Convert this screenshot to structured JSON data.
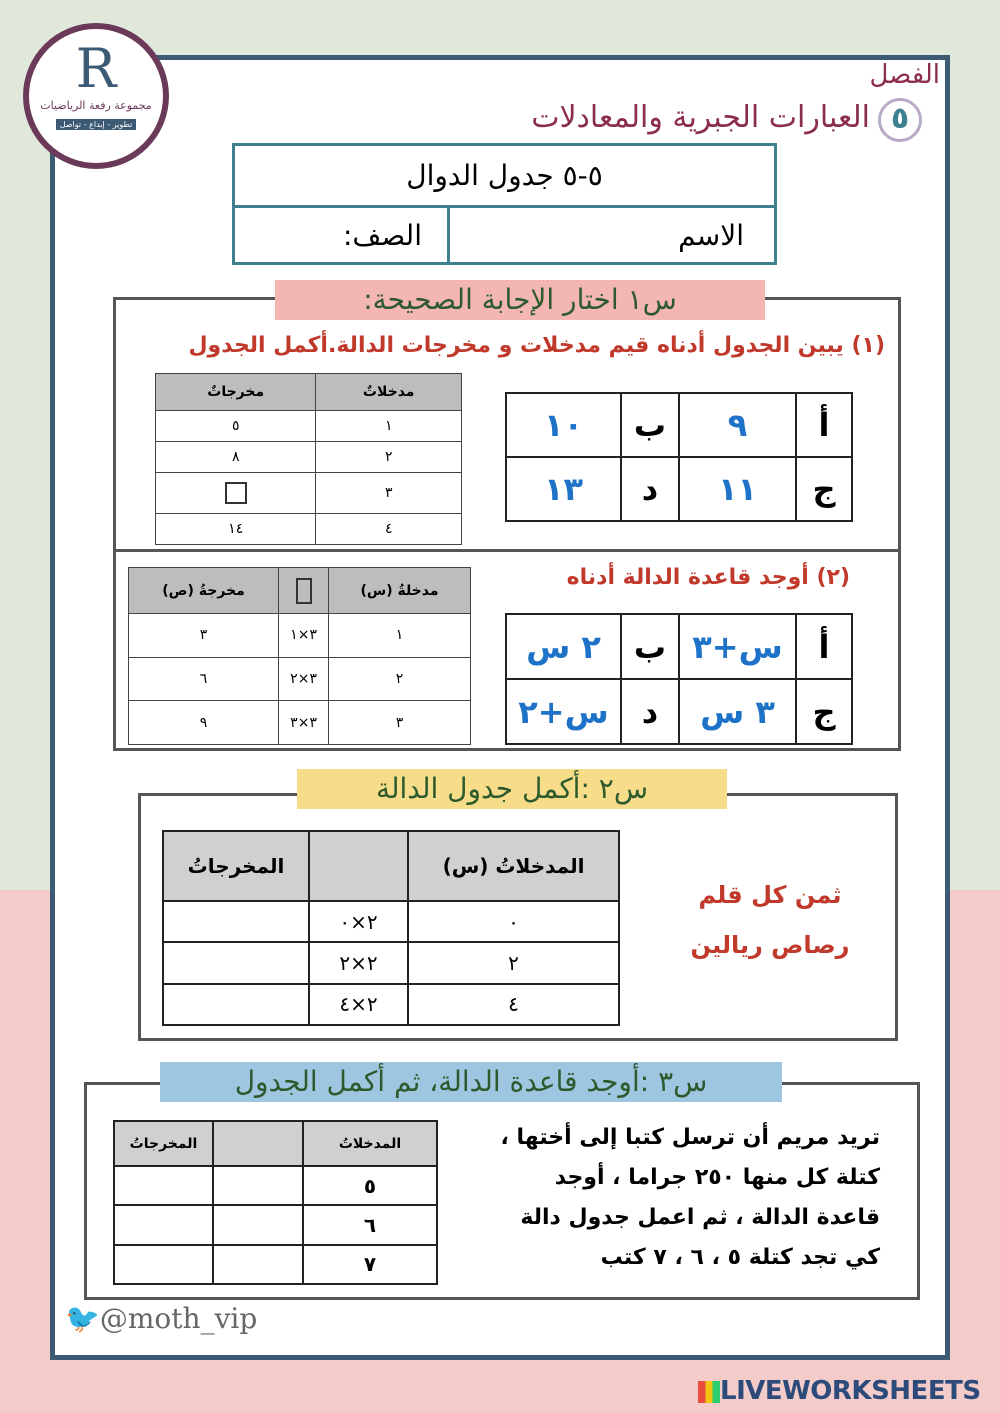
{
  "logo": {
    "initial": "R",
    "name": "مجموعة رفعة الرياضيات",
    "tagline": "تطوير - إبداع - تواصل"
  },
  "header": {
    "chapter_label": "الفصل",
    "chapter_number": "٥",
    "chapter_title": "العبارات الجبرية والمعادلات"
  },
  "title_box": {
    "lesson": "٥-٥ جدول الدوال",
    "name_label": "الاسم",
    "class_label": "الصف:"
  },
  "q1": {
    "label": "س١ اختار الإجابة الصحيحة:",
    "part1": {
      "prompt": "(١) يبين الجدول أدناه قيم مدخلات و مخرجات الدالة.أكمل الجدول",
      "options": [
        [
          "أ",
          "٩",
          "ب",
          "١٠"
        ],
        [
          "ج",
          "١١",
          "د",
          "١٣"
        ]
      ],
      "table": {
        "headers": [
          "مدخلاتٌ",
          "مخرجاتٌ"
        ],
        "rows": [
          [
            "١",
            "٥"
          ],
          [
            "٢",
            "٨"
          ],
          [
            "٣",
            ""
          ],
          [
            "٤",
            "١٤"
          ]
        ]
      }
    },
    "part2": {
      "prompt": "(٢) أوجد قاعدة الدالة أدناه",
      "options": [
        [
          "أ",
          "س+٣",
          "ب",
          "٢ س"
        ],
        [
          "ج",
          "٣ س",
          "د",
          "س+٢"
        ]
      ],
      "table": {
        "headers": [
          "مدخلةُ (س)",
          "",
          "مخرجةُ (ص)"
        ],
        "rows": [
          [
            "١",
            "٣×١",
            "٣"
          ],
          [
            "٢",
            "٣×٢",
            "٦"
          ],
          [
            "٣",
            "٣×٣",
            "٩"
          ]
        ]
      }
    }
  },
  "q2": {
    "label": "س٢ :أكمل جدول الدالة",
    "side_text": [
      "ثمن كل قلم",
      "رصاص ريالين"
    ],
    "table": {
      "headers": [
        "المدخلاتُ (س)",
        "",
        "المخرجاتُ"
      ],
      "rows": [
        [
          "٠",
          "٢×٠",
          ""
        ],
        [
          "٢",
          "٢×٢",
          ""
        ],
        [
          "٤",
          "٢×٤",
          ""
        ]
      ]
    }
  },
  "q3": {
    "label": "س٣ :أوجد قاعدة الدالة، ثم أكمل الجدول",
    "paragraph": [
      "تريد مريم أن ترسل كتبا إلى أختها ،",
      "كتلة كل منها ٢٥٠ جراما ، أوجد",
      "قاعدة الدالة ، ثم اعمل جدول دالة",
      "كي تجد كتلة ٥ ، ٦ ، ٧ كتب"
    ],
    "table": {
      "headers": [
        "المدخلاتُ",
        "",
        "المخرجاتُ"
      ],
      "rows": [
        [
          "٥",
          "",
          ""
        ],
        [
          "٦",
          "",
          ""
        ],
        [
          "٧",
          "",
          ""
        ]
      ]
    }
  },
  "footer": {
    "twitter": "@moth_vip",
    "brand": "LIVEWORKSHEETS"
  },
  "colors": {
    "frame": "#3d5a74",
    "maroon": "#8b2e4e",
    "teal": "#3f8090",
    "red": "#c0392b",
    "blue": "#1e73c8"
  }
}
